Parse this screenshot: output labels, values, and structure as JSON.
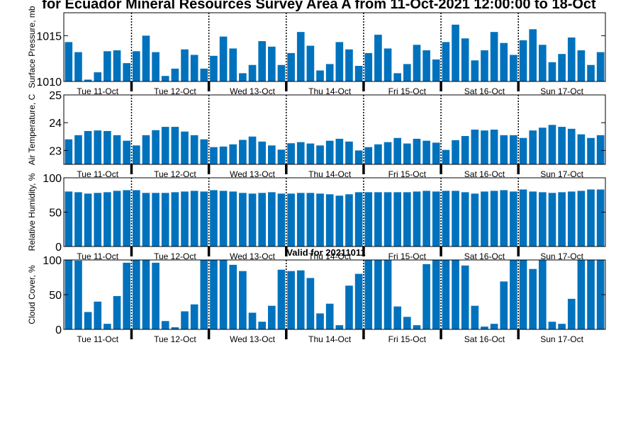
{
  "figure": {
    "title": "for Ecuador Mineral Resources Survey Area A from 11-Oct-2021 12:00:00 to 18-Oct",
    "valid_label": "Valid for 20211011"
  },
  "colors": {
    "bar": "#0072bd",
    "axis": "#000000"
  },
  "chart_data": [
    {
      "type": "bar",
      "ylabel": "Surface Pressure, mb",
      "ylim": [
        1010,
        1017.5
      ],
      "yticks": [
        1010,
        1015
      ],
      "day_labels": [
        "Tue 11-Oct",
        "Tue 12-Oct",
        "Wed 13-Oct",
        "Thu 14-Oct",
        "Fri 15-Oct",
        "Sat 16-Oct",
        "Sun 17-Oct"
      ],
      "values": [
        1014.3,
        1013.2,
        1010.2,
        1011.0,
        1013.3,
        1013.4,
        1012.0,
        1013.3,
        1015.0,
        1013.2,
        1010.6,
        1011.4,
        1013.5,
        1012.9,
        1011.4,
        1012.8,
        1014.9,
        1013.6,
        1010.9,
        1011.8,
        1014.4,
        1013.8,
        1011.8,
        1013.1,
        1015.4,
        1013.9,
        1011.2,
        1011.9,
        1014.3,
        1013.5,
        1011.7,
        1013.1,
        1015.1,
        1013.6,
        1010.9,
        1011.9,
        1014.0,
        1013.4,
        1012.4,
        1014.3,
        1016.2,
        1014.7,
        1012.3,
        1013.4,
        1015.4,
        1014.2,
        1012.9,
        1014.5,
        1015.7,
        1014.0,
        1012.1,
        1013.0,
        1014.8,
        1013.4,
        1011.8,
        1013.2
      ]
    },
    {
      "type": "bar",
      "ylabel": "Air Temperature, C",
      "ylim": [
        22.5,
        25
      ],
      "yticks": [
        23,
        24,
        25
      ],
      "day_labels": [
        "Tue 11-Oct",
        "Tue 12-Oct",
        "Wed 13-Oct",
        "Thu 14-Oct",
        "Fri 15-Oct",
        "Sat 16-Oct",
        "Sun 17-Oct"
      ],
      "values": [
        23.4,
        23.55,
        23.7,
        23.72,
        23.7,
        23.55,
        23.35,
        23.18,
        23.55,
        23.73,
        23.85,
        23.85,
        23.68,
        23.55,
        23.4,
        23.12,
        23.14,
        23.22,
        23.38,
        23.5,
        23.32,
        23.18,
        23.03,
        23.26,
        23.3,
        23.25,
        23.18,
        23.35,
        23.42,
        23.32,
        23.0,
        23.12,
        23.22,
        23.3,
        23.45,
        23.25,
        23.42,
        23.35,
        23.28,
        23.02,
        23.37,
        23.52,
        23.75,
        23.72,
        23.75,
        23.55,
        23.55,
        23.45,
        23.72,
        23.82,
        23.92,
        23.85,
        23.78,
        23.58,
        23.45,
        23.55
      ]
    },
    {
      "type": "bar",
      "ylabel": "Relative Humidity, %",
      "ylim": [
        0,
        100
      ],
      "yticks": [
        0,
        50,
        100
      ],
      "day_labels": [
        "Tue 11-Oct",
        "Tue 12-Oct",
        "Wed 13-Oct",
        "Thu 14-Oct",
        "Fri 15-Oct",
        "Sat 16-Oct",
        "Sun 17-Oct"
      ],
      "values": [
        80,
        79,
        77,
        78,
        79,
        81,
        82,
        82,
        78,
        78,
        78,
        79,
        80,
        81,
        80,
        82,
        81,
        80,
        78,
        77,
        78,
        79,
        77,
        77,
        78,
        78,
        77,
        76,
        74,
        76,
        79,
        79,
        79,
        79,
        79,
        79,
        80,
        81,
        80,
        81,
        81,
        79,
        77,
        80,
        81,
        82,
        80,
        83,
        80,
        79,
        78,
        79,
        80,
        81,
        83,
        83
      ]
    },
    {
      "type": "bar",
      "ylabel": "Cloud Cover, %",
      "ylim": [
        0,
        100
      ],
      "yticks": [
        0,
        50,
        100
      ],
      "day_labels": [
        "Tue 11-Oct",
        "Tue 12-Oct",
        "Wed 13-Oct",
        "Thu 14-Oct",
        "Fri 15-Oct",
        "Sat 16-Oct",
        "Sun 17-Oct"
      ],
      "values": [
        100,
        99,
        25,
        40,
        8,
        48,
        96,
        100,
        100,
        96,
        12,
        3,
        26,
        36,
        100,
        100,
        100,
        93,
        84,
        24,
        11,
        34,
        86,
        84,
        85,
        74,
        23,
        37,
        6,
        63,
        80,
        100,
        100,
        100,
        33,
        18,
        6,
        94,
        100,
        100,
        100,
        92,
        34,
        4,
        8,
        69,
        100,
        100,
        87,
        100,
        11,
        8,
        44,
        100,
        100,
        100
      ]
    }
  ]
}
